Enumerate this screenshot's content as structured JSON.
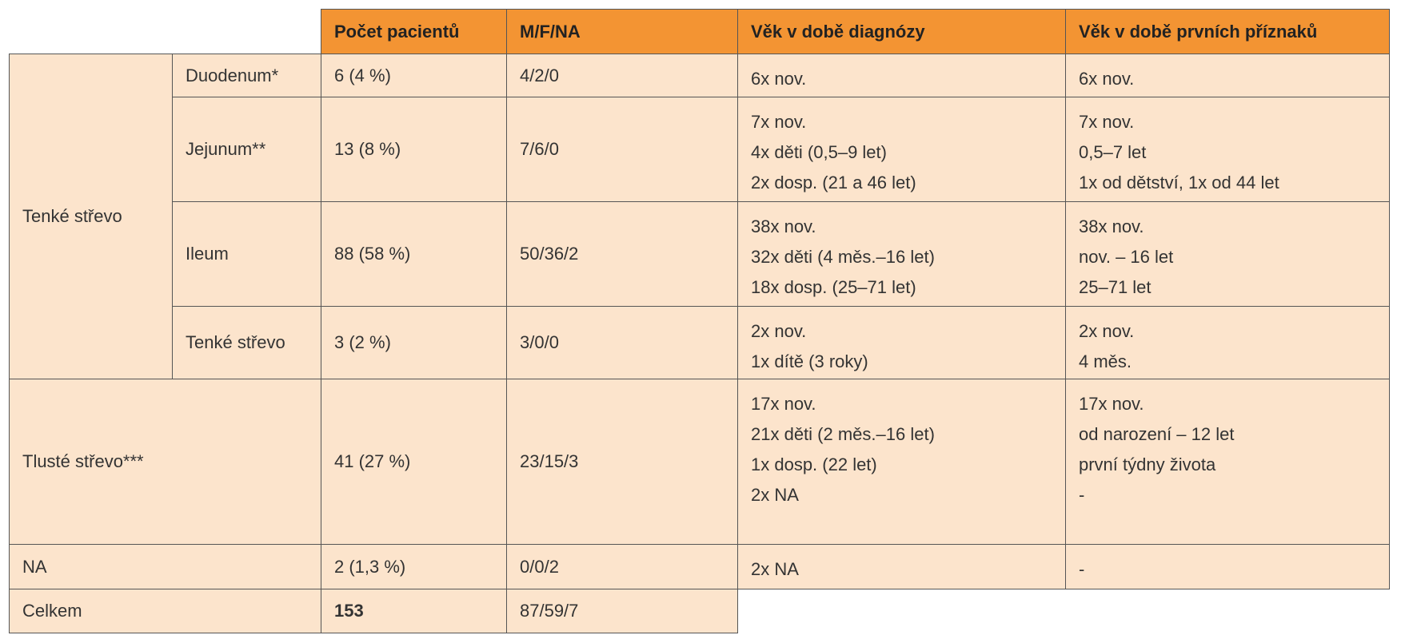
{
  "table": {
    "columns": [
      "Počet pacientů",
      "M/F/NA",
      "Věk v době diagnózy",
      "Věk v době prvních příznaků"
    ],
    "groups": [
      {
        "label": "Tenké střevo",
        "rows": [
          {
            "label": "Duodenum*",
            "patients": "6 (4 %)",
            "mfna": "4/2/0",
            "age_diagnosis": [
              "6x nov."
            ],
            "age_symptoms": [
              "6x nov."
            ]
          },
          {
            "label": "Jejunum**",
            "patients": "13 (8 %)",
            "mfna": "7/6/0",
            "age_diagnosis": [
              "7x nov.",
              "4x děti (0,5–9 let)",
              "2x dosp. (21 a 46 let)"
            ],
            "age_symptoms": [
              "7x nov.",
              "0,5–7 let",
              "1x od dětství, 1x od 44 let"
            ]
          },
          {
            "label": "Ileum",
            "patients": "88 (58 %)",
            "mfna": "50/36/2",
            "age_diagnosis": [
              "38x nov.",
              "32x děti (4 měs.–16 let)",
              "18x dosp. (25–71 let)"
            ],
            "age_symptoms": [
              "38x nov.",
              "nov. – 16 let",
              "25–71 let"
            ]
          },
          {
            "label": "Tenké střevo",
            "patients": "3 (2 %)",
            "mfna": "3/0/0",
            "age_diagnosis": [
              "2x nov.",
              "1x dítě (3 roky)"
            ],
            "age_symptoms": [
              "2x nov.",
              "4 měs."
            ]
          }
        ]
      },
      {
        "label": "Tlusté střevo***",
        "patients": "41 (27 %)",
        "mfna": "23/15/3",
        "age_diagnosis": [
          "17x nov.",
          "21x děti (2 měs.–16 let)",
          "1x dosp. (22 let)",
          "2x NA"
        ],
        "age_symptoms": [
          "17x nov.",
          "od narození – 12 let",
          "první týdny života",
          "-"
        ]
      },
      {
        "label": "NA",
        "patients": "2 (1,3 %)",
        "mfna": "0/0/2",
        "age_diagnosis": [
          "2x NA"
        ],
        "age_symptoms": [
          "-"
        ]
      }
    ],
    "total": {
      "label": "Celkem",
      "patients": "153",
      "mfna": "87/59/7"
    }
  }
}
